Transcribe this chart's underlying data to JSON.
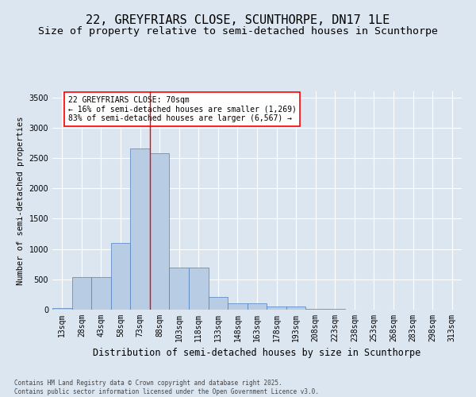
{
  "title1": "22, GREYFRIARS CLOSE, SCUNTHORPE, DN17 1LE",
  "title2": "Size of property relative to semi-detached houses in Scunthorpe",
  "xlabel": "Distribution of semi-detached houses by size in Scunthorpe",
  "ylabel": "Number of semi-detached properties",
  "categories": [
    "13sqm",
    "28sqm",
    "43sqm",
    "58sqm",
    "73sqm",
    "88sqm",
    "103sqm",
    "118sqm",
    "133sqm",
    "148sqm",
    "163sqm",
    "178sqm",
    "193sqm",
    "208sqm",
    "223sqm",
    "238sqm",
    "253sqm",
    "268sqm",
    "283sqm",
    "298sqm",
    "313sqm"
  ],
  "values": [
    30,
    540,
    540,
    1100,
    2660,
    2580,
    690,
    690,
    210,
    105,
    100,
    50,
    50,
    15,
    10,
    5,
    5,
    3,
    2,
    2,
    2
  ],
  "bar_color": "#b8cce4",
  "bar_edge_color": "#5080c0",
  "background_color": "#dce6f1",
  "plot_bg_color": "#dce6f1",
  "vline_x": 4.5,
  "vline_color": "red",
  "annotation_text": "22 GREYFRIARS CLOSE: 70sqm\n← 16% of semi-detached houses are smaller (1,269)\n83% of semi-detached houses are larger (6,567) →",
  "footer_text": "Contains HM Land Registry data © Crown copyright and database right 2025.\nContains public sector information licensed under the Open Government Licence v3.0.",
  "ylim": [
    0,
    3600
  ],
  "yticks": [
    0,
    500,
    1000,
    1500,
    2000,
    2500,
    3000,
    3500
  ],
  "title1_fontsize": 11,
  "title2_fontsize": 9.5,
  "xlabel_fontsize": 8.5,
  "ylabel_fontsize": 7.5,
  "tick_fontsize": 7,
  "annot_fontsize": 7,
  "footer_fontsize": 5.5
}
